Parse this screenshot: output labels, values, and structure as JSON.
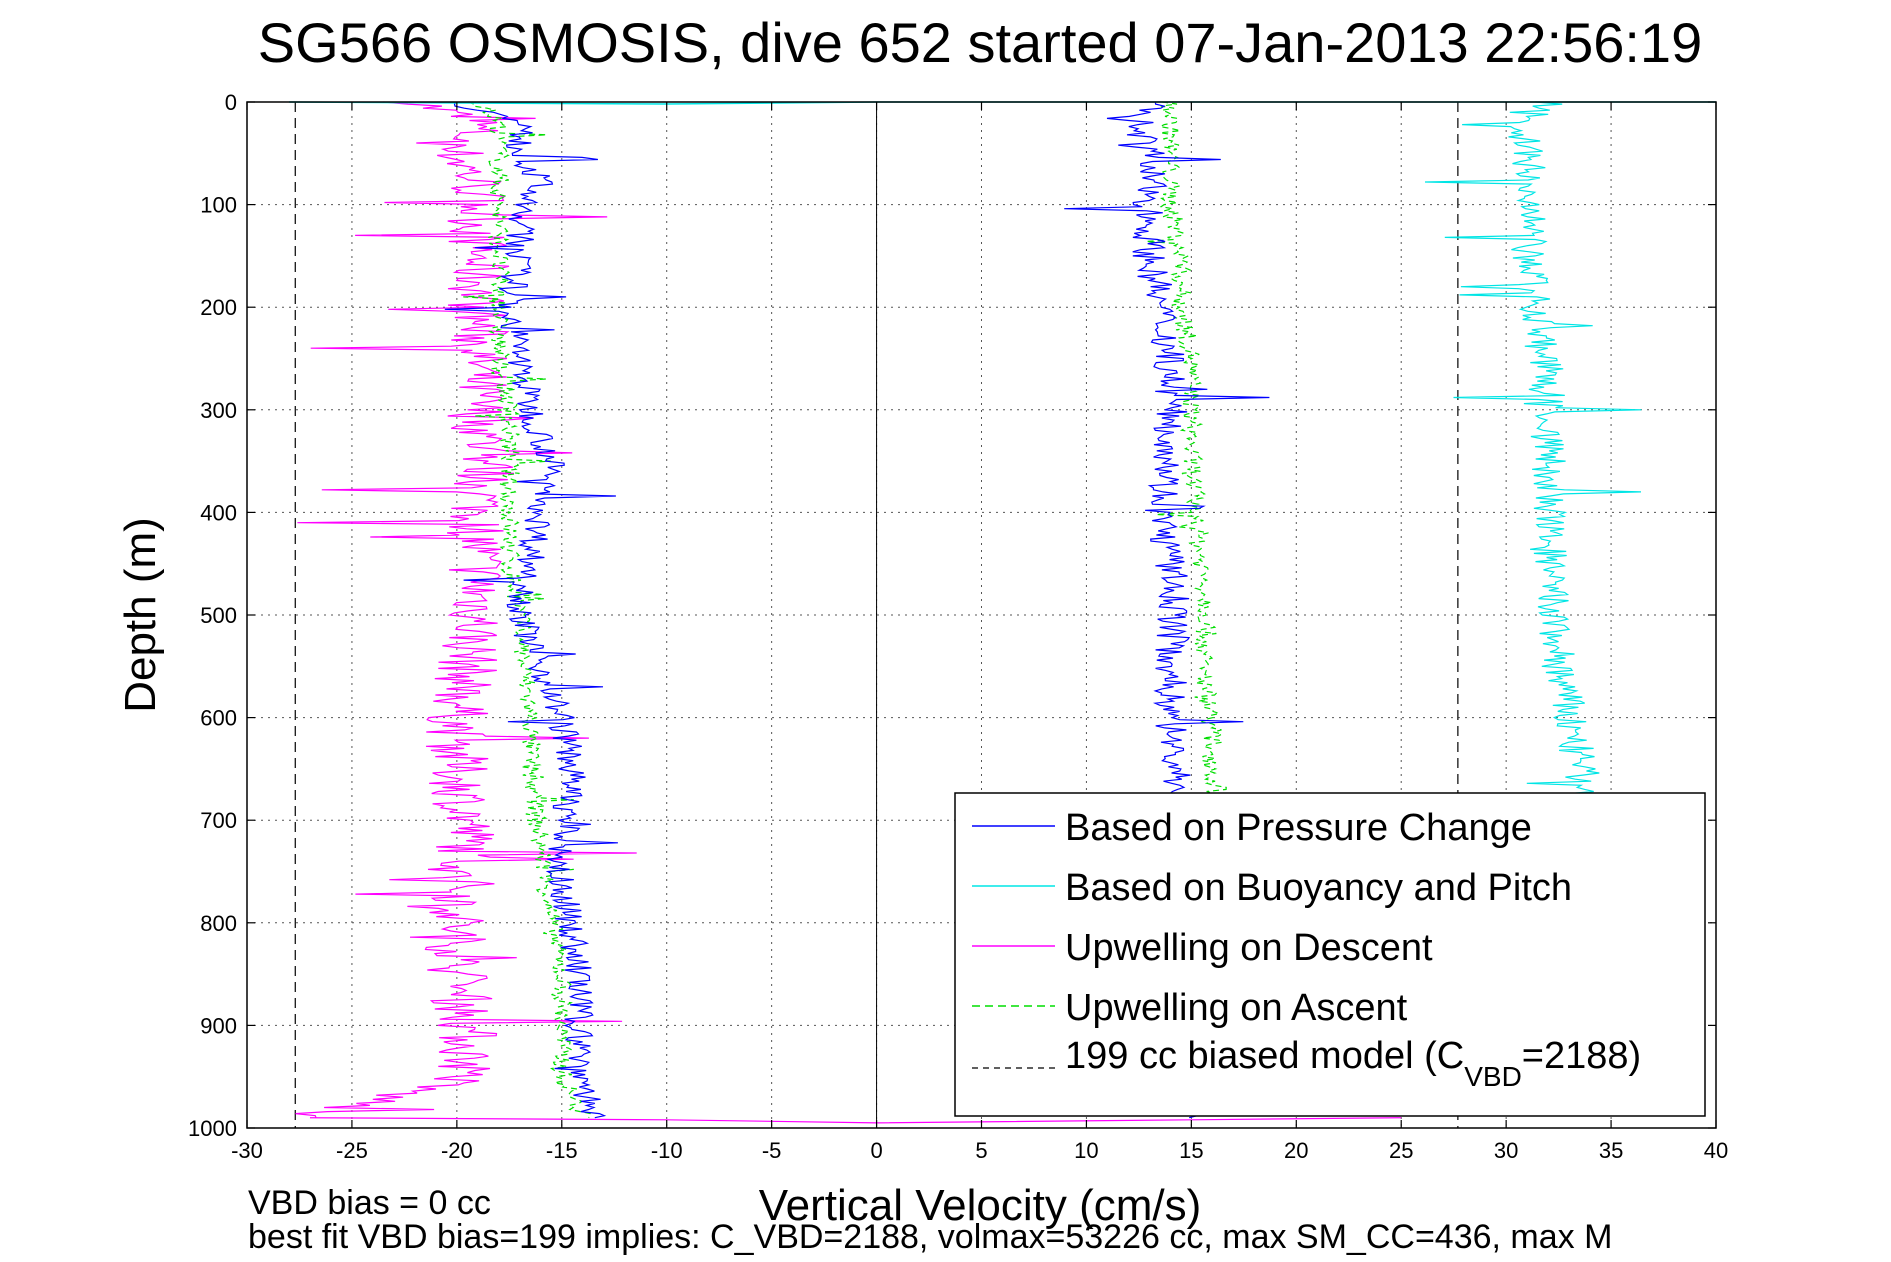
{
  "chart_data": {
    "type": "line",
    "title": "SG566 OSMOSIS, dive 652 started 07-Jan-2013 22:56:19",
    "xlabel": "Vertical Velocity (cm/s)",
    "ylabel": "Depth (m)",
    "xlim": [
      -30,
      40
    ],
    "ylim": [
      1000,
      0
    ],
    "y_reversed": true,
    "grid": true,
    "x_ticks": [
      -30,
      -25,
      -20,
      -15,
      -10,
      -5,
      0,
      5,
      10,
      15,
      20,
      25,
      30,
      35,
      40
    ],
    "y_ticks": [
      0,
      100,
      200,
      300,
      400,
      500,
      600,
      700,
      800,
      900,
      1000
    ],
    "legend_position": "bottom-right",
    "legend": {
      "pressure": "Based on Pressure Change",
      "buoyancy": "Based on Buoyancy and Pitch",
      "descent": "Upwelling on Descent",
      "ascent": "Upwelling on Ascent",
      "model_main": "199 cc biased model (C",
      "model_sub": "VBD",
      "model_end": "=2188)"
    },
    "series": [
      {
        "name": "Based on Pressure Change",
        "color": "#0000ff",
        "style": "solid",
        "depth": [
          0,
          20,
          50,
          80,
          100,
          150,
          200,
          250,
          300,
          350,
          400,
          450,
          500,
          550,
          600,
          650,
          700,
          750,
          800,
          850,
          900,
          950,
          990
        ],
        "descent_values": [
          -20,
          -17,
          -17,
          -16,
          -17,
          -17,
          -17.5,
          -17,
          -16.5,
          -15.5,
          -16,
          -16.5,
          -17,
          -16,
          -15,
          -14.5,
          -14.8,
          -15.2,
          -14.6,
          -14.2,
          -14.2,
          -14,
          -13.5
        ],
        "ascent_values": [
          13,
          12.5,
          13,
          13,
          13,
          13,
          13.5,
          14,
          14,
          14,
          13.5,
          14,
          14.2,
          14,
          14,
          14.2,
          15,
          15,
          15,
          15,
          15,
          15,
          15
        ]
      },
      {
        "name": "Based on Buoyancy and Pitch",
        "color": "#00e5e5",
        "style": "solid",
        "depth": [
          0,
          20,
          50,
          80,
          100,
          150,
          200,
          250,
          300,
          350,
          400,
          450,
          500,
          550,
          600,
          650,
          680
        ],
        "ascent_values": [
          32,
          31,
          31,
          31,
          31,
          31,
          31.5,
          31.8,
          32,
          32,
          32,
          32,
          32.2,
          32.5,
          33,
          33.5,
          34
        ]
      },
      {
        "name": "Upwelling on Descent",
        "color": "#ff00ff",
        "style": "solid",
        "depth": [
          0,
          20,
          50,
          80,
          100,
          150,
          200,
          250,
          300,
          350,
          400,
          450,
          500,
          550,
          600,
          650,
          700,
          750,
          800,
          850,
          900,
          950,
          990
        ],
        "values": [
          -22,
          -19,
          -20,
          -19,
          -19,
          -19,
          -19,
          -19,
          -19,
          -18.5,
          -19,
          -19,
          -19,
          -19.5,
          -20,
          -20,
          -19.5,
          -19.5,
          -20,
          -20,
          -19.5,
          -19.5,
          -27
        ]
      },
      {
        "name": "Upwelling on Ascent",
        "color": "#00dd00",
        "style": "dashed",
        "depth": [
          0,
          20,
          50,
          80,
          100,
          150,
          200,
          250,
          300,
          350,
          400,
          450,
          500,
          550,
          600,
          650,
          700,
          750,
          800,
          850,
          900,
          950,
          990
        ],
        "descent_values": [
          -19,
          -18,
          -18,
          -18,
          -18,
          -18,
          -18,
          -18,
          -17.5,
          -17.5,
          -17.5,
          -17.5,
          -17,
          -16.8,
          -16.5,
          -16.5,
          -16.2,
          -15.8,
          -15.5,
          -15,
          -15,
          -15,
          -14
        ],
        "ascent_values": [
          14,
          14,
          14,
          14,
          14,
          14.5,
          14.5,
          15,
          15,
          15,
          15.2,
          15.5,
          15.8,
          15.5,
          16,
          16,
          16.5,
          null,
          null,
          null,
          null,
          null,
          null
        ]
      },
      {
        "name": "199 cc biased model (CVBD=2188)",
        "color": "#000000",
        "style": "dashed",
        "vertical_lines_at": [
          -27.7,
          27.7
        ]
      }
    ],
    "zero_line_x": 0
  },
  "footer": {
    "line1": "VBD bias = 0 cc",
    "line2": "best fit VBD bias=199 implies: C_VBD=2188, volmax=53226 cc, max SM_CC=436, max M"
  }
}
